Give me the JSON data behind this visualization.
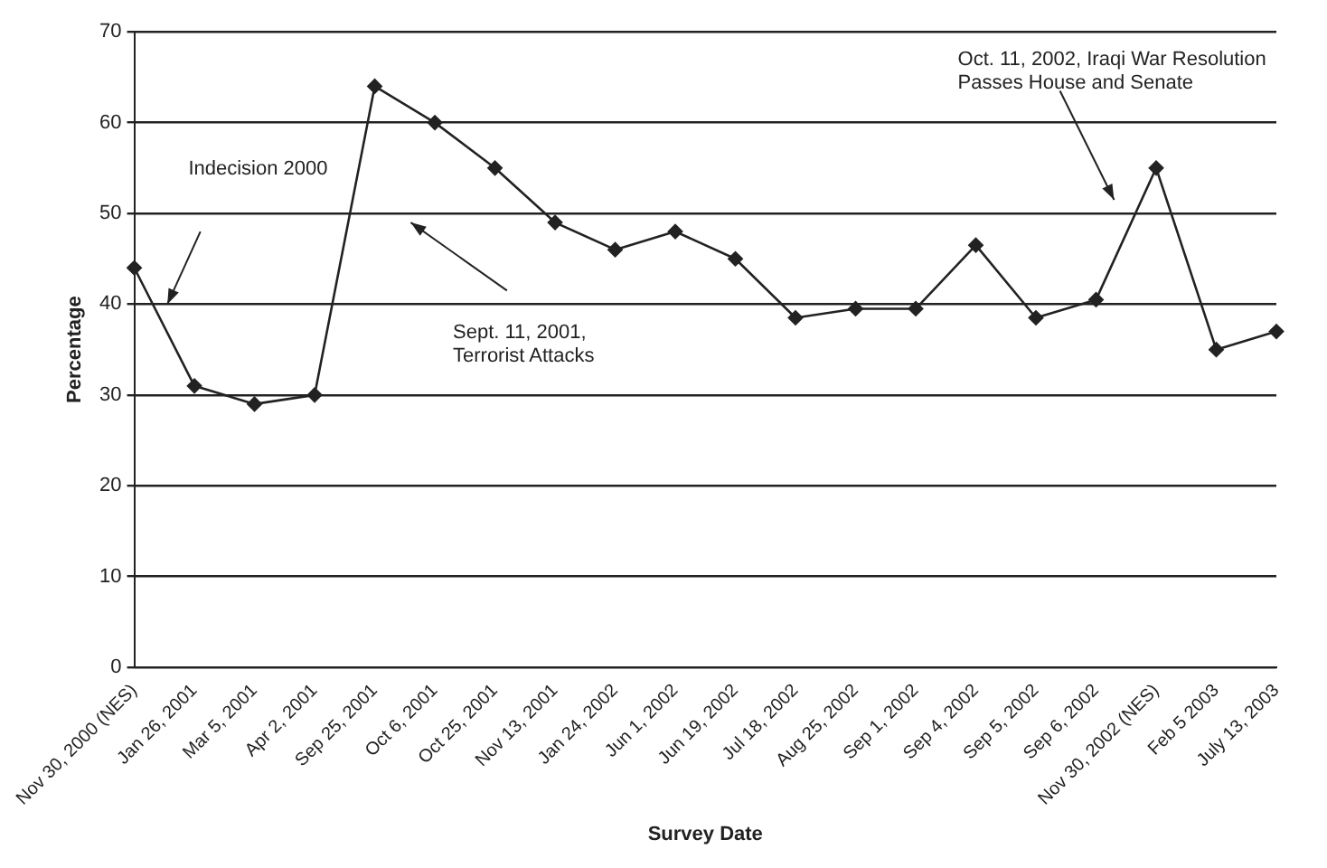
{
  "chart_data": {
    "type": "line",
    "xlabel": "Survey Date",
    "ylabel": "Percentage",
    "categories": [
      "Nov 30, 2000 (NES)",
      "Jan 26, 2001",
      "Mar 5, 2001",
      "Apr 2, 2001",
      "Sep 25, 2001",
      "Oct 6, 2001",
      "Oct 25, 2001",
      "Nov 13, 2001",
      "Jan 24, 2002",
      "Jun 1, 2002",
      "Jun 19, 2002",
      "Jul 18, 2002",
      "Aug 25, 2002",
      "Sep 1, 2002",
      "Sep 4, 2002",
      "Sep 5, 2002",
      "Sep 6, 2002",
      "Nov 30, 2002 (NES)",
      "Feb 5 2003",
      "July 13, 2003"
    ],
    "series": [
      {
        "color": "#222222",
        "values": [
          44,
          31,
          29,
          30,
          64,
          60,
          55,
          49,
          46,
          48,
          45,
          38.5,
          39.5,
          39.5,
          46.5,
          38.5,
          40.5,
          55,
          35,
          37
        ]
      }
    ],
    "ylim": [
      0,
      70
    ],
    "yticks": [
      0,
      10,
      20,
      30,
      40,
      50,
      60,
      70
    ],
    "grid": "y",
    "legend": false,
    "marker": "diamond",
    "line_style": "solid",
    "annotations": [
      "Indecision 2000",
      "Sept. 11, 2001,\nTerrorist Attacks",
      "Oct. 11, 2002, Iraqi War Resolution\nPasses House and Senate"
    ]
  }
}
